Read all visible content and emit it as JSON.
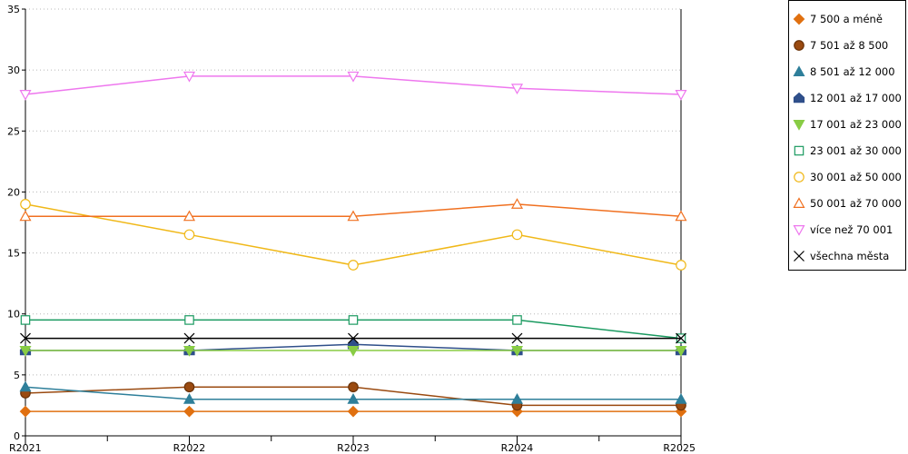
{
  "chart_data": {
    "type": "line",
    "title": "",
    "xlabel": "",
    "ylabel": "",
    "categories": [
      "R2021",
      "R2022",
      "R2023",
      "R2024",
      "R2025"
    ],
    "ylim": [
      0,
      35
    ],
    "yticks": [
      "0",
      "5",
      "10",
      "15",
      "20",
      "25",
      "30",
      "35"
    ],
    "grid": "horizontal dotted",
    "legend_position": "right",
    "series": [
      {
        "name": "7 500 a méně",
        "color": "#e07010",
        "marker": "diamond",
        "values": [
          2,
          2,
          2,
          2,
          2
        ]
      },
      {
        "name": "7 501 až 8 500",
        "color": "#9a4a10",
        "marker": "circle-filled",
        "values": [
          3.5,
          4,
          4,
          2.5,
          2.5
        ]
      },
      {
        "name": "8 501 až 12 000",
        "color": "#2e7f9a",
        "marker": "triangle-up-filled",
        "values": [
          4,
          3,
          3,
          3,
          3
        ]
      },
      {
        "name": "12 001 až 17 000",
        "color": "#2f4f8a",
        "marker": "house-filled",
        "values": [
          7,
          7,
          7.5,
          7,
          7
        ]
      },
      {
        "name": "17 001 až 23 000",
        "color": "#88cc44",
        "marker": "triangle-down-filled",
        "values": [
          7,
          7,
          7,
          7,
          7
        ]
      },
      {
        "name": "23 001 až 30 000",
        "color": "#1a9a60",
        "marker": "square-open",
        "values": [
          9.5,
          9.5,
          9.5,
          9.5,
          8
        ]
      },
      {
        "name": "30 001 až 50 000",
        "color": "#f0b818",
        "marker": "circle-open",
        "values": [
          19,
          16.5,
          14,
          16.5,
          14
        ]
      },
      {
        "name": "50 001 až 70 000",
        "color": "#f07020",
        "marker": "triangle-up-open",
        "values": [
          18,
          18,
          18,
          19,
          18
        ]
      },
      {
        "name": "více než 70 001",
        "color": "#ee77ee",
        "marker": "triangle-down-open",
        "values": [
          28,
          29.5,
          29.5,
          28.5,
          28
        ]
      },
      {
        "name": "všechna města",
        "color": "#000000",
        "marker": "x",
        "values": [
          8,
          8,
          8,
          8,
          8
        ]
      }
    ]
  }
}
